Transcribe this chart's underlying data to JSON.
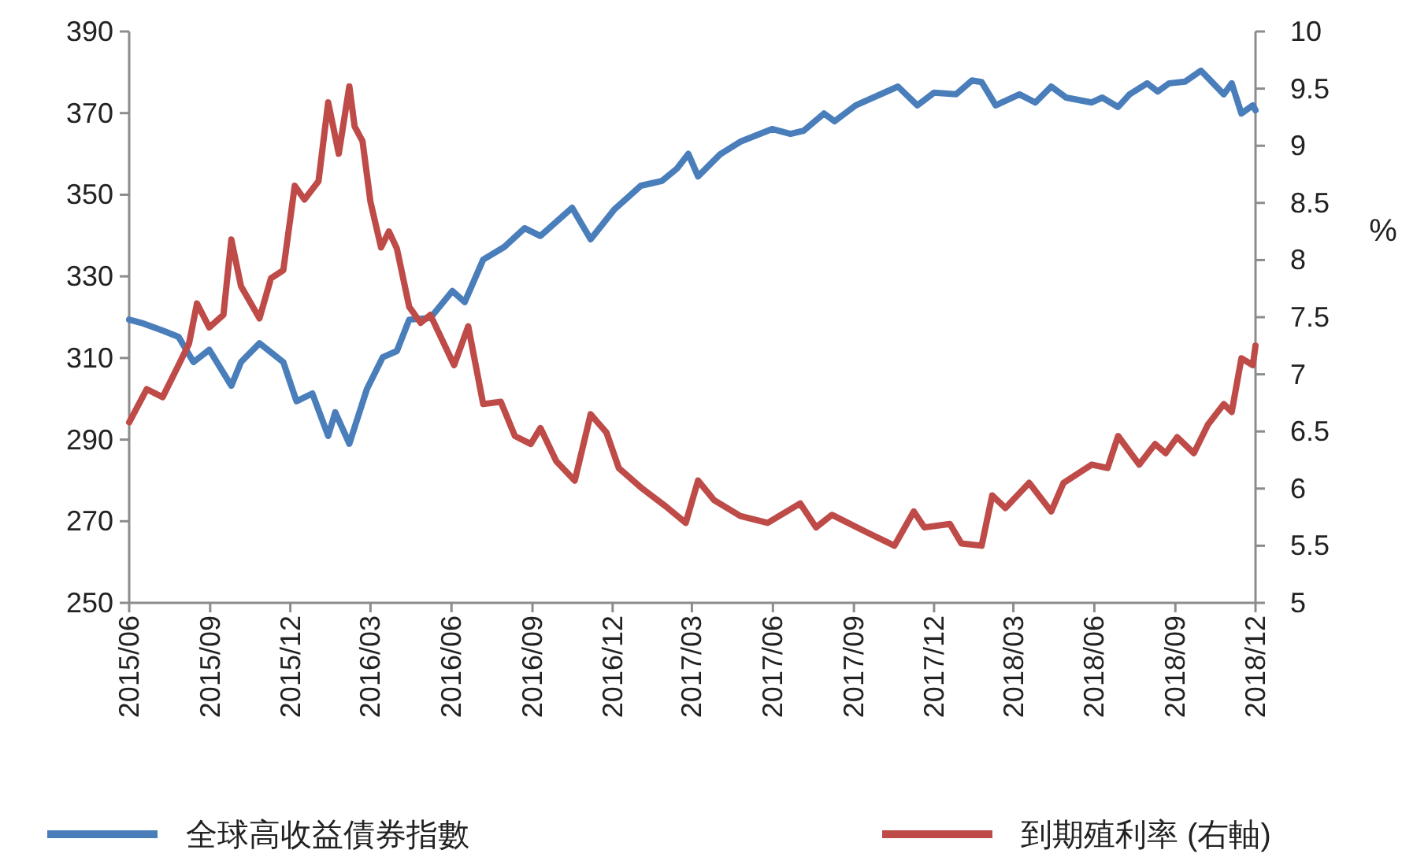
{
  "chart_data": {
    "type": "line",
    "y2label": "%",
    "legend": "bottom",
    "marker": "none",
    "line_style": "solid",
    "grid": false,
    "xlim": [
      "2015-06-01",
      "2018-12-01"
    ],
    "xticks": [
      {
        "value": "2015-06",
        "label": "2015/06"
      },
      {
        "value": "2015-09",
        "label": "2015/09"
      },
      {
        "value": "2015-12",
        "label": "2015/12"
      },
      {
        "value": "2016-03",
        "label": "2016/03"
      },
      {
        "value": "2016-06",
        "label": "2016/06"
      },
      {
        "value": "2016-09",
        "label": "2016/09"
      },
      {
        "value": "2016-12",
        "label": "2016/12"
      },
      {
        "value": "2017-03",
        "label": "2017/03"
      },
      {
        "value": "2017-06",
        "label": "2017/06"
      },
      {
        "value": "2017-09",
        "label": "2017/09"
      },
      {
        "value": "2017-12",
        "label": "2017/12"
      },
      {
        "value": "2018-03",
        "label": "2018/03"
      },
      {
        "value": "2018-06",
        "label": "2018/06"
      },
      {
        "value": "2018-09",
        "label": "2018/09"
      },
      {
        "value": "2018-12",
        "label": "2018/12"
      }
    ],
    "ylim": [
      250,
      390
    ],
    "yticks": [
      250,
      270,
      290,
      310,
      330,
      350,
      370,
      390
    ],
    "y2lim": [
      5,
      10
    ],
    "y2ticks": [
      5,
      5.5,
      6,
      6.5,
      7,
      7.5,
      8,
      8.5,
      9,
      9.5,
      10
    ],
    "series": [
      {
        "name": "全球高收益債券指數",
        "color": "#4a7ebb",
        "x": [
          "2015-06-01",
          "2015-06-15",
          "2015-07-09",
          "2015-07-27",
          "2015-08-13",
          "2015-08-31",
          "2015-09-25",
          "2015-10-06",
          "2015-10-27",
          "2015-11-23",
          "2015-12-08",
          "2015-12-26",
          "2016-01-13",
          "2016-01-21",
          "2016-02-06",
          "2016-02-26",
          "2016-03-15",
          "2016-03-31",
          "2016-04-14",
          "2016-05-08",
          "2016-06-02",
          "2016-06-16",
          "2016-07-07",
          "2016-07-31",
          "2016-08-23",
          "2016-09-10",
          "2016-10-16",
          "2016-11-06",
          "2016-12-03",
          "2017-01-02",
          "2017-01-26",
          "2017-02-12",
          "2017-02-25",
          "2017-03-08",
          "2017-04-02",
          "2017-04-25",
          "2017-05-31",
          "2017-06-21",
          "2017-07-06",
          "2017-07-29",
          "2017-08-10",
          "2017-09-03",
          "2017-10-21",
          "2017-11-12",
          "2017-12-01",
          "2017-12-26",
          "2018-01-13",
          "2018-01-24",
          "2018-02-09",
          "2018-03-08",
          "2018-03-26",
          "2018-04-13",
          "2018-04-30",
          "2018-05-29",
          "2018-06-10",
          "2018-06-28",
          "2018-07-11",
          "2018-07-31",
          "2018-08-12",
          "2018-08-25",
          "2018-09-12",
          "2018-09-30",
          "2018-10-14",
          "2018-10-26",
          "2018-11-04",
          "2018-11-15",
          "2018-11-28",
          "2018-12-01"
        ],
        "values": [
          319.4,
          318.6,
          316.7,
          315.2,
          309,
          312,
          303.2,
          309,
          313.6,
          309,
          299.4,
          301.3,
          290.9,
          296.7,
          289,
          302.4,
          310.2,
          311.7,
          319.4,
          319.8,
          326.4,
          323.7,
          334.1,
          337.2,
          341.8,
          339.9,
          346.8,
          339.1,
          346.4,
          352.2,
          353.4,
          356.4,
          360,
          354.5,
          359.9,
          363,
          366.1,
          364.9,
          365.7,
          369.9,
          368,
          371.9,
          376.5,
          371.9,
          375,
          374.6,
          378,
          377.6,
          371.9,
          374.6,
          372.6,
          376.5,
          373.8,
          372.6,
          373.8,
          371.5,
          374.6,
          377.3,
          375.3,
          377.3,
          377.7,
          380.4,
          377.3,
          374.6,
          377.3,
          369.9,
          371.9,
          370.7
        ]
      },
      {
        "name": "到期殖利率 (右軸)",
        "color": "#be4b48",
        "axis": "y2",
        "x": [
          "2015-06-01",
          "2015-06-21",
          "2015-07-09",
          "2015-07-27",
          "2015-08-08",
          "2015-08-17",
          "2015-08-31",
          "2015-09-16",
          "2015-09-25",
          "2015-10-06",
          "2015-10-27",
          "2015-11-09",
          "2015-11-23",
          "2015-12-06",
          "2015-12-17",
          "2016-01-02",
          "2016-01-13",
          "2016-01-25",
          "2016-02-06",
          "2016-02-12",
          "2016-02-21",
          "2016-03-01",
          "2016-03-13",
          "2016-03-22",
          "2016-03-31",
          "2016-04-14",
          "2016-04-27",
          "2016-05-08",
          "2016-06-04",
          "2016-06-20",
          "2016-07-07",
          "2016-07-27",
          "2016-08-12",
          "2016-08-30",
          "2016-09-10",
          "2016-09-28",
          "2016-10-19",
          "2016-11-06",
          "2016-11-24",
          "2016-12-08",
          "2017-01-02",
          "2017-01-31",
          "2017-02-22",
          "2017-03-08",
          "2017-03-26",
          "2017-04-25",
          "2017-05-26",
          "2017-07-02",
          "2017-07-20",
          "2017-08-07",
          "2017-09-15",
          "2017-10-17",
          "2017-11-08",
          "2017-11-20",
          "2017-12-19",
          "2018-01-01",
          "2018-01-24",
          "2018-02-05",
          "2018-02-20",
          "2018-03-19",
          "2018-04-13",
          "2018-04-27",
          "2018-05-29",
          "2018-06-16",
          "2018-06-28",
          "2018-07-22",
          "2018-08-09",
          "2018-08-21",
          "2018-09-03",
          "2018-09-22",
          "2018-10-08",
          "2018-10-26",
          "2018-11-04",
          "2018-11-15",
          "2018-11-28",
          "2018-12-01"
        ],
        "values": [
          6.58,
          6.87,
          6.8,
          7.08,
          7.27,
          7.62,
          7.41,
          7.52,
          8.18,
          7.77,
          7.49,
          7.84,
          7.91,
          8.65,
          8.53,
          8.69,
          9.38,
          8.93,
          9.52,
          9.17,
          9.04,
          8.51,
          8.11,
          8.25,
          8.1,
          7.59,
          7.45,
          7.52,
          7.08,
          7.42,
          6.74,
          6.76,
          6.46,
          6.39,
          6.53,
          6.24,
          6.07,
          6.65,
          6.49,
          6.18,
          6.01,
          5.84,
          5.7,
          6.07,
          5.9,
          5.76,
          5.7,
          5.87,
          5.66,
          5.77,
          5.62,
          5.5,
          5.8,
          5.66,
          5.69,
          5.52,
          5.5,
          5.94,
          5.83,
          6.05,
          5.8,
          6.05,
          6.21,
          6.18,
          6.46,
          6.21,
          6.39,
          6.31,
          6.45,
          6.31,
          6.56,
          6.74,
          6.67,
          7.14,
          7.08,
          7.25
        ]
      }
    ]
  }
}
